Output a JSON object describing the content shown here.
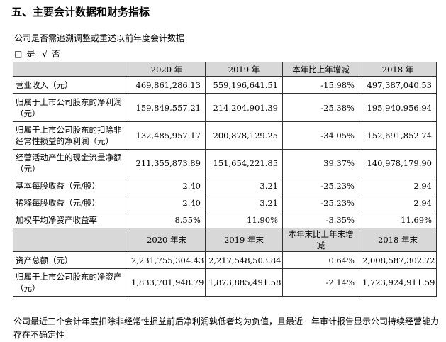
{
  "title": "五、主要会计数据和财务指标",
  "subtitle": "公司是否需追溯调整或重述以前年度会计数据",
  "choices": {
    "box": "□",
    "yes": "是",
    "check": "√",
    "no": "否"
  },
  "table1": {
    "headers": [
      "",
      "2020 年",
      "2019 年",
      "本年比上年增减",
      "2018 年"
    ],
    "rows": [
      {
        "label": "营业收入（元）",
        "v2020": "469,861,286.13",
        "v2019": "559,196,641.51",
        "chg": "-15.98%",
        "v2018": "497,387,040.53"
      },
      {
        "label": "归属于上市公司股东的净利润（元）",
        "v2020": "159,849,557.21",
        "v2019": "214,204,901.39",
        "chg": "-25.38%",
        "v2018": "195,940,956.94"
      },
      {
        "label": "归属于上市公司股东的扣除非经常性损益的净利润（元）",
        "v2020": "132,485,957.17",
        "v2019": "200,878,129.25",
        "chg": "-34.05%",
        "v2018": "152,691,852.74"
      },
      {
        "label": "经营活动产生的现金流量净额（元）",
        "v2020": "211,355,873.89",
        "v2019": "151,654,221.85",
        "chg": "39.37%",
        "v2018": "140,978,179.90"
      },
      {
        "label": "基本每股收益（元/股）",
        "v2020": "2.40",
        "v2019": "3.21",
        "chg": "-25.23%",
        "v2018": "2.94"
      },
      {
        "label": "稀释每股收益（元/股）",
        "v2020": "2.40",
        "v2019": "3.21",
        "chg": "-25.23%",
        "v2018": "2.94"
      },
      {
        "label": "加权平均净资产收益率",
        "v2020": "8.55%",
        "v2019": "11.90%",
        "chg": "-3.35%",
        "v2018": "11.69%"
      }
    ]
  },
  "table2": {
    "headers": [
      "",
      "2020 年末",
      "2019 年末",
      "本年末比上年末增减",
      "2018 年末"
    ],
    "rows": [
      {
        "label": "资产总额（元）",
        "v2020": "2,231,755,304.43",
        "v2019": "2,217,548,503.84",
        "chg": "0.64%",
        "v2018": "2,008,587,302.72"
      },
      {
        "label": "归属于上市公司股东的净资产（元）",
        "v2020": "1,833,701,948.79",
        "v2019": "1,873,885,491.58",
        "chg": "-2.14%",
        "v2018": "1,723,924,911.59"
      }
    ]
  },
  "footer": "公司最近三个会计年度扣除非经常性损益前后净利润孰低者均为负值，且最近一年审计报告显示公司持续经营能力存在不确定性"
}
